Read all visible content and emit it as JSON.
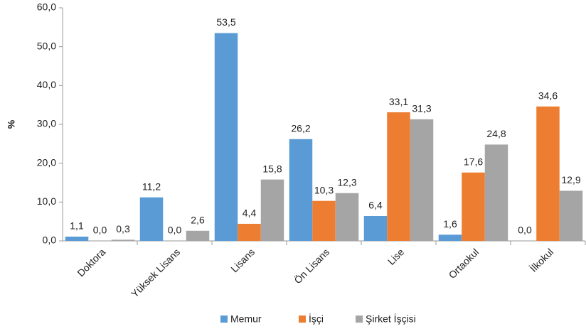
{
  "chart_data": {
    "type": "bar",
    "y_axis_label": "%",
    "categories": [
      "Doktora",
      "Yüksek Lisans",
      "Lisans",
      "Ön Lisans",
      "Lise",
      "Ortaokul",
      "İlkokul"
    ],
    "series": [
      {
        "name": "Memur",
        "color": "#5b9bd5",
        "values": [
          1.1,
          11.2,
          53.5,
          26.2,
          6.4,
          1.6,
          0.0
        ],
        "value_labels": [
          "1,1",
          "11,2",
          "53,5",
          "26,2",
          "6,4",
          "1,6",
          "0,0"
        ]
      },
      {
        "name": "İşçi",
        "color": "#ed7d31",
        "values": [
          0.0,
          0.0,
          4.4,
          10.3,
          33.1,
          17.6,
          34.6
        ],
        "value_labels": [
          "0,0",
          "0,0",
          "4,4",
          "10,3",
          "33,1",
          "17,6",
          "34,6"
        ]
      },
      {
        "name": "Şirket İşçisi",
        "color": "#a5a5a5",
        "values": [
          0.3,
          2.6,
          15.8,
          12.3,
          31.3,
          24.8,
          12.9
        ],
        "value_labels": [
          "0,3",
          "2,6",
          "15,8",
          "12,3",
          "31,3",
          "24,8",
          "12,9"
        ]
      }
    ],
    "ylim": [
      0,
      60
    ],
    "yticks": [
      {
        "value": 0,
        "label": "0,0"
      },
      {
        "value": 10,
        "label": "10,0"
      },
      {
        "value": 20,
        "label": "20,0"
      },
      {
        "value": 30,
        "label": "30,0"
      },
      {
        "value": 40,
        "label": "40,0"
      },
      {
        "value": 50,
        "label": "50,0"
      },
      {
        "value": 60,
        "label": "60,0"
      }
    ],
    "legend": "bottom"
  }
}
